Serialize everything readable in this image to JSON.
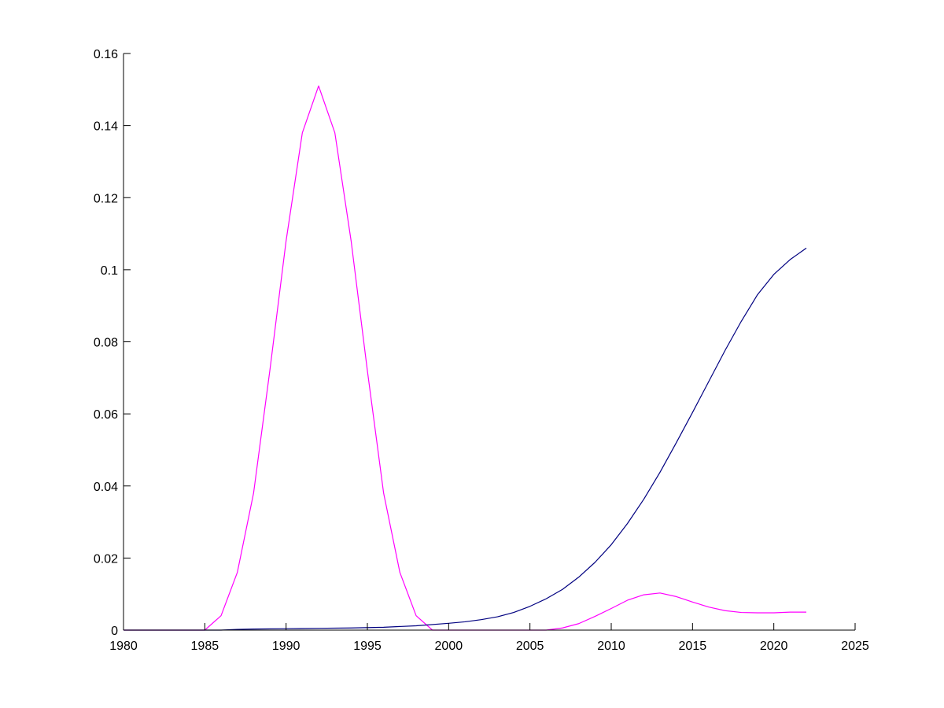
{
  "chart_data": {
    "type": "line",
    "title": "",
    "xlabel": "",
    "ylabel": "",
    "xlim": [
      1980,
      2025
    ],
    "ylim": [
      0,
      0.16
    ],
    "xticks": [
      1980,
      1985,
      1990,
      1995,
      2000,
      2005,
      2010,
      2015,
      2020,
      2025
    ],
    "yticks": [
      0,
      0.02,
      0.04,
      0.06,
      0.08,
      0.1,
      0.12,
      0.14,
      0.16
    ],
    "xtick_labels": [
      "1980",
      "1985",
      "1990",
      "1995",
      "2000",
      "2005",
      "2010",
      "2015",
      "2020",
      "2025"
    ],
    "ytick_labels": [
      "0",
      "0.02",
      "0.04",
      "0.06",
      "0.08",
      "0.1",
      "0.12",
      "0.14",
      "0.16"
    ],
    "grid": false,
    "series": [
      {
        "color": "#FF00FF",
        "points": [
          [
            1980,
            0
          ],
          [
            1985,
            0
          ],
          [
            1986,
            0.004
          ],
          [
            1987,
            0.016
          ],
          [
            1988,
            0.038
          ],
          [
            1989,
            0.072
          ],
          [
            1990,
            0.108
          ],
          [
            1991,
            0.138
          ],
          [
            1992,
            0.151
          ],
          [
            1993,
            0.138
          ],
          [
            1994,
            0.108
          ],
          [
            1995,
            0.072
          ],
          [
            1996,
            0.038
          ],
          [
            1997,
            0.016
          ],
          [
            1998,
            0.004
          ],
          [
            1999,
            0
          ],
          [
            2000,
            0
          ],
          [
            2005,
            0
          ],
          [
            2006,
            0
          ],
          [
            2007,
            0.0006
          ],
          [
            2008,
            0.0018
          ],
          [
            2009,
            0.0038
          ],
          [
            2010,
            0.006
          ],
          [
            2011,
            0.0083
          ],
          [
            2012,
            0.0098
          ],
          [
            2013,
            0.0103
          ],
          [
            2014,
            0.0093
          ],
          [
            2015,
            0.0078
          ],
          [
            2016,
            0.0064
          ],
          [
            2017,
            0.0054
          ],
          [
            2018,
            0.0049
          ],
          [
            2019,
            0.0048
          ],
          [
            2020,
            0.0048
          ],
          [
            2021,
            0.005
          ],
          [
            2022,
            0.005
          ]
        ]
      },
      {
        "color": "#000080",
        "points": [
          [
            1980,
            0
          ],
          [
            1984,
            0
          ],
          [
            1985,
            0
          ],
          [
            1986,
            0
          ],
          [
            1987,
            0.0002
          ],
          [
            1988,
            0.0003
          ],
          [
            1990,
            0.0004
          ],
          [
            1992,
            0.0005
          ],
          [
            1994,
            0.0006
          ],
          [
            1996,
            0.0008
          ],
          [
            1998,
            0.0012
          ],
          [
            2000,
            0.0019
          ],
          [
            2001,
            0.0023
          ],
          [
            2002,
            0.0029
          ],
          [
            2003,
            0.0037
          ],
          [
            2004,
            0.0049
          ],
          [
            2005,
            0.0066
          ],
          [
            2006,
            0.0087
          ],
          [
            2007,
            0.0113
          ],
          [
            2008,
            0.0147
          ],
          [
            2009,
            0.0188
          ],
          [
            2010,
            0.0237
          ],
          [
            2011,
            0.0296
          ],
          [
            2012,
            0.0363
          ],
          [
            2013,
            0.0438
          ],
          [
            2014,
            0.052
          ],
          [
            2015,
            0.0604
          ],
          [
            2016,
            0.069
          ],
          [
            2017,
            0.0776
          ],
          [
            2018,
            0.0857
          ],
          [
            2019,
            0.0931
          ],
          [
            2020,
            0.0987
          ],
          [
            2021,
            0.1028
          ],
          [
            2022,
            0.106
          ]
        ]
      }
    ]
  }
}
